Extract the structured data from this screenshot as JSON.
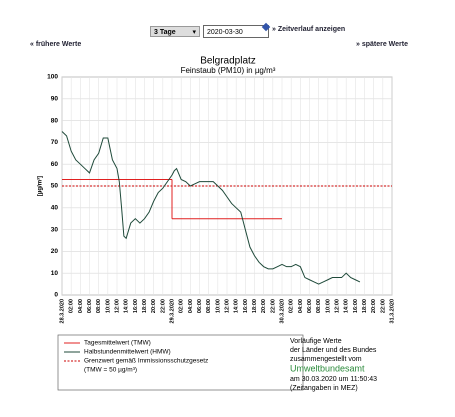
{
  "ui": {
    "period": "3 Tage",
    "date": "2020-03-30",
    "show": "» Zeitverlauf anzeigen",
    "earlier": "« frühere Werte",
    "later": "» spätere Werte"
  },
  "chart_data": {
    "type": "line",
    "title": "Belgradplatz",
    "subtitle": "Feinstaub (PM10) in µg/m³",
    "y_label": "[µg/m³]",
    "xlim": [
      0,
      72
    ],
    "ylim": [
      0,
      100
    ],
    "yticks": [
      0,
      10,
      20,
      30,
      40,
      50,
      60,
      70,
      80,
      90,
      100
    ],
    "grid": true,
    "xticks": [
      {
        "value": 0,
        "label": "28.3.2020"
      },
      {
        "value": 2,
        "label": "02:00"
      },
      {
        "value": 4,
        "label": "04:00"
      },
      {
        "value": 6,
        "label": "06:00"
      },
      {
        "value": 8,
        "label": "08:00"
      },
      {
        "value": 10,
        "label": "10:00"
      },
      {
        "value": 12,
        "label": "12:00"
      },
      {
        "value": 14,
        "label": "14:00"
      },
      {
        "value": 16,
        "label": "16:00"
      },
      {
        "value": 18,
        "label": "18:00"
      },
      {
        "value": 20,
        "label": "20:00"
      },
      {
        "value": 22,
        "label": "22:00"
      },
      {
        "value": 24,
        "label": "29.3.2020"
      },
      {
        "value": 26,
        "label": "02:00"
      },
      {
        "value": 28,
        "label": "04:00"
      },
      {
        "value": 30,
        "label": "06:00"
      },
      {
        "value": 32,
        "label": "08:00"
      },
      {
        "value": 34,
        "label": "10:00"
      },
      {
        "value": 36,
        "label": "12:00"
      },
      {
        "value": 38,
        "label": "14:00"
      },
      {
        "value": 40,
        "label": "16:00"
      },
      {
        "value": 42,
        "label": "18:00"
      },
      {
        "value": 44,
        "label": "20:00"
      },
      {
        "value": 46,
        "label": "22:00"
      },
      {
        "value": 48,
        "label": "30.3.2020"
      },
      {
        "value": 50,
        "label": "02:00"
      },
      {
        "value": 52,
        "label": "04:00"
      },
      {
        "value": 54,
        "label": "06:00"
      },
      {
        "value": 56,
        "label": "08:00"
      },
      {
        "value": 58,
        "label": "10:00"
      },
      {
        "value": 60,
        "label": "12:00"
      },
      {
        "value": 62,
        "label": "14:00"
      },
      {
        "value": 64,
        "label": "16:00"
      },
      {
        "value": 66,
        "label": "18:00"
      },
      {
        "value": 68,
        "label": "20:00"
      },
      {
        "value": 70,
        "label": "22:00"
      },
      {
        "value": 72,
        "label": "31.3.2020"
      }
    ],
    "daily": {
      "name": "Tagesmittelwert (TMW)",
      "color": "#e02020",
      "bins": [
        0,
        24,
        48
      ],
      "values": [
        53,
        35
      ]
    },
    "series": [
      {
        "name": "Halbstundenmittelwert (HMW)",
        "color": "#1f4a3a",
        "x": [
          0,
          1,
          2,
          3,
          4,
          5,
          6,
          7,
          8,
          9,
          10,
          11,
          12,
          12.5,
          13,
          13.5,
          14,
          15,
          16,
          17,
          18,
          19,
          20,
          21,
          22,
          23,
          24,
          24.5,
          25,
          26,
          27,
          28,
          29,
          30,
          31,
          32,
          33,
          34,
          35,
          36,
          37,
          38,
          39,
          40,
          41,
          42,
          43,
          44,
          45,
          46,
          47,
          48,
          49,
          50,
          51,
          52,
          53,
          54,
          55,
          56,
          57,
          58,
          59,
          60,
          61,
          62,
          63,
          64,
          65
        ],
        "values": [
          75,
          73,
          66,
          62,
          60,
          58,
          56,
          62,
          65,
          72,
          72,
          62,
          58,
          52,
          40,
          27,
          26,
          33,
          35,
          33,
          35,
          38,
          43,
          47,
          49,
          52,
          55,
          57,
          58,
          53,
          52,
          50,
          51,
          52,
          52,
          52,
          52,
          50,
          48,
          45,
          42,
          40,
          38,
          30,
          22,
          18,
          15,
          13,
          12,
          12,
          13,
          14,
          13,
          13,
          14,
          13,
          8,
          7,
          6,
          5,
          6,
          7,
          8,
          8,
          8,
          10,
          8,
          7,
          6
        ]
      }
    ],
    "threshold": {
      "name": "Grenzwert gemäß Immissionsschutzgesetz",
      "note": "(TMW = 50 µg/m³)",
      "value": 50,
      "color": "#cc0000"
    }
  },
  "footer": {
    "lines": [
      "Vorläufige Werte",
      "der Länder und des Bundes",
      "zusammengestellt vom"
    ],
    "agency": "Umweltbundesamt",
    "timestamp": "am 30.03.2020 um 11:50:43",
    "note": "(Zeitangaben in MEZ)"
  }
}
